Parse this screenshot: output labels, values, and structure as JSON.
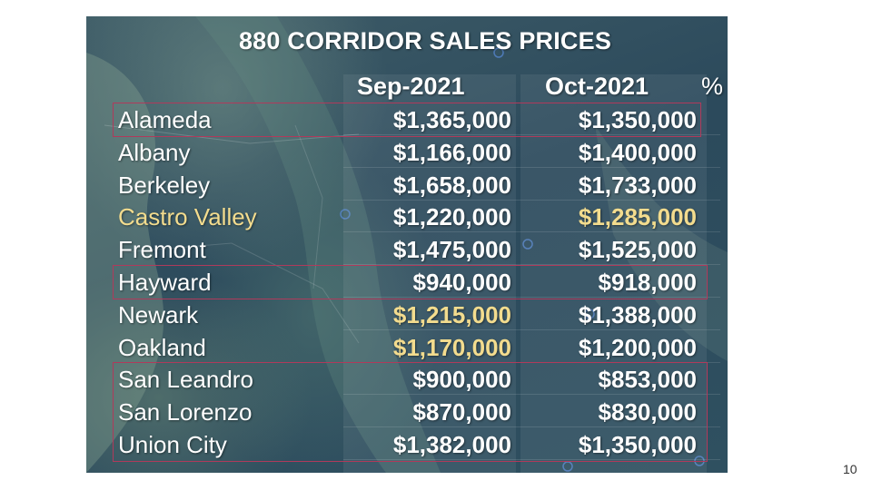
{
  "slide": {
    "title": "880 CORRIDOR SALES PRICES",
    "page_number": "10",
    "highlight_color": "#f3dc8e",
    "box_color": "#b03a5b"
  },
  "table": {
    "headers": {
      "sep": "Sep-2021",
      "oct": "Oct-2021",
      "pct": "%"
    },
    "rows": [
      {
        "city": "Alameda",
        "sep": "$1,365,000",
        "oct": "$1,350,000",
        "city_highlight": false,
        "sep_highlight": false,
        "oct_highlight": false,
        "boxed": true
      },
      {
        "city": "Albany",
        "sep": "$1,166,000",
        "oct": "$1,400,000",
        "city_highlight": false,
        "sep_highlight": false,
        "oct_highlight": false,
        "boxed": false
      },
      {
        "city": "Berkeley",
        "sep": "$1,658,000",
        "oct": "$1,733,000",
        "city_highlight": false,
        "sep_highlight": false,
        "oct_highlight": false,
        "boxed": false
      },
      {
        "city": "Castro Valley",
        "sep": "$1,220,000",
        "oct": "$1,285,000",
        "city_highlight": true,
        "sep_highlight": false,
        "oct_highlight": true,
        "boxed": false
      },
      {
        "city": "Fremont",
        "sep": "$1,475,000",
        "oct": "$1,525,000",
        "city_highlight": false,
        "sep_highlight": false,
        "oct_highlight": false,
        "boxed": false
      },
      {
        "city": "Hayward",
        "sep": "$940,000",
        "oct": "$918,000",
        "city_highlight": false,
        "sep_highlight": false,
        "oct_highlight": false,
        "boxed": true
      },
      {
        "city": "Newark",
        "sep": "$1,215,000",
        "oct": "$1,388,000",
        "city_highlight": false,
        "sep_highlight": true,
        "oct_highlight": false,
        "boxed": false
      },
      {
        "city": "Oakland",
        "sep": "$1,170,000",
        "oct": "$1,200,000",
        "city_highlight": false,
        "sep_highlight": true,
        "oct_highlight": false,
        "boxed": false
      },
      {
        "city": "San Leandro",
        "sep": "$900,000",
        "oct": "$853,000",
        "city_highlight": false,
        "sep_highlight": false,
        "oct_highlight": false,
        "boxed": true
      },
      {
        "city": "San Lorenzo",
        "sep": "$870,000",
        "oct": "$830,000",
        "city_highlight": false,
        "sep_highlight": false,
        "oct_highlight": false,
        "boxed": true
      },
      {
        "city": "Union City",
        "sep": "$1,382,000",
        "oct": "$1,350,000",
        "city_highlight": false,
        "sep_highlight": false,
        "oct_highlight": false,
        "boxed": true
      }
    ]
  }
}
